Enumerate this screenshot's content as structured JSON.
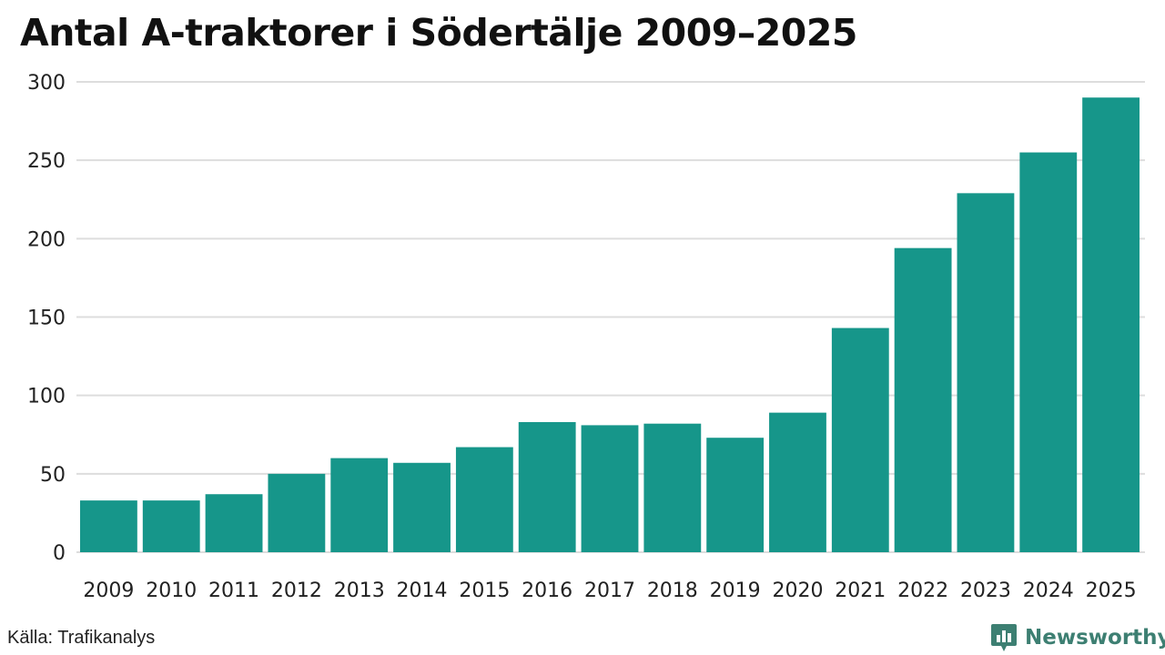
{
  "header": {
    "title": "Antal A-traktorer i Södertälje 2009–2025"
  },
  "chart_data": {
    "type": "bar",
    "title": "Antal A-traktorer i Södertälje 2009–2025",
    "xlabel": "",
    "ylabel": "",
    "categories": [
      "2009",
      "2010",
      "2011",
      "2012",
      "2013",
      "2014",
      "2015",
      "2016",
      "2017",
      "2018",
      "2019",
      "2020",
      "2021",
      "2022",
      "2023",
      "2024",
      "2025"
    ],
    "values": [
      33,
      33,
      37,
      50,
      60,
      57,
      67,
      83,
      81,
      82,
      73,
      89,
      143,
      194,
      229,
      255,
      290
    ],
    "ylim": [
      0,
      300
    ],
    "yticks": [
      0,
      50,
      100,
      150,
      200,
      250,
      300
    ],
    "grid": true,
    "bar_color": "#16968a",
    "grid_color": "#dddddd"
  },
  "footer": {
    "source": "Källa: Trafikanalys",
    "brand": "Newsworthy",
    "brand_color": "#3d7f72"
  }
}
